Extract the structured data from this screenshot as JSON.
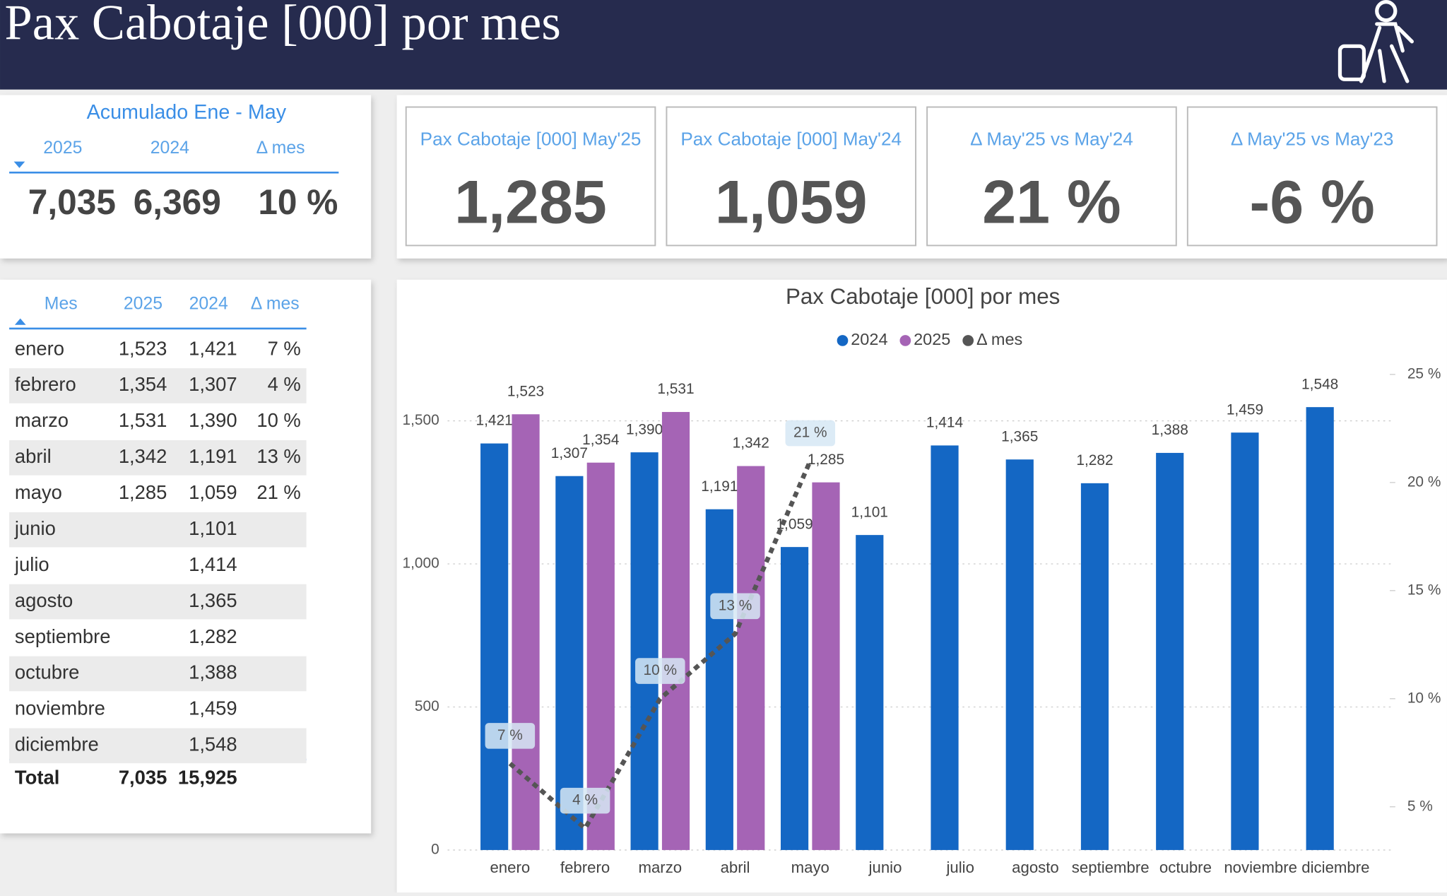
{
  "header": {
    "title": "Pax Cabotaje [000] por mes"
  },
  "summary": {
    "title": "Acumulado Ene - May",
    "columns": [
      "2025",
      "2024",
      "Δ mes"
    ],
    "values": [
      "7,035",
      "6,369",
      "10 %"
    ]
  },
  "kpis": [
    {
      "label": "Pax Cabotaje [000] May'25",
      "value": "1,285"
    },
    {
      "label": "Pax Cabotaje [000] May'24",
      "value": "1,059"
    },
    {
      "label": "Δ May'25 vs May'24",
      "value": "21 %"
    },
    {
      "label": "Δ May'25 vs May'23",
      "value": "-6 %"
    }
  ],
  "table": {
    "columns": [
      "Mes",
      "2025",
      "2024",
      "Δ mes"
    ],
    "rows": [
      {
        "mes": "enero",
        "y2025": "1,523",
        "y2024": "1,421",
        "delta": "7 %"
      },
      {
        "mes": "febrero",
        "y2025": "1,354",
        "y2024": "1,307",
        "delta": "4 %"
      },
      {
        "mes": "marzo",
        "y2025": "1,531",
        "y2024": "1,390",
        "delta": "10 %"
      },
      {
        "mes": "abril",
        "y2025": "1,342",
        "y2024": "1,191",
        "delta": "13 %"
      },
      {
        "mes": "mayo",
        "y2025": "1,285",
        "y2024": "1,059",
        "delta": "21 %"
      },
      {
        "mes": "junio",
        "y2024": "1,101"
      },
      {
        "mes": "julio",
        "y2024": "1,414"
      },
      {
        "mes": "agosto",
        "y2024": "1,365"
      },
      {
        "mes": "septiembre",
        "y2024": "1,282"
      },
      {
        "mes": "octubre",
        "y2024": "1,388"
      },
      {
        "mes": "noviembre",
        "y2024": "1,459"
      },
      {
        "mes": "diciembre",
        "y2024": "1,548"
      }
    ],
    "total": {
      "mes": "Total",
      "y2025": "7,035",
      "y2024": "15,925"
    }
  },
  "chart_data": {
    "type": "bar",
    "title": "Pax Cabotaje [000] por mes",
    "categories": [
      "enero",
      "febrero",
      "marzo",
      "abril",
      "mayo",
      "junio",
      "julio",
      "agosto",
      "septiembre",
      "octubre",
      "noviembre",
      "diciembre"
    ],
    "series": [
      {
        "name": "2024",
        "color": "#1467c4",
        "type": "bar",
        "values": [
          1421,
          1307,
          1390,
          1191,
          1059,
          1101,
          1414,
          1365,
          1282,
          1388,
          1459,
          1548
        ],
        "value_labels": [
          "1,421",
          "1,307",
          "1,390",
          "1,191",
          "1,059",
          "1,101",
          "1,414",
          "1,365",
          "1,282",
          "1,388",
          "1,459",
          "1,548"
        ]
      },
      {
        "name": "2025",
        "color": "#a564b5",
        "type": "bar",
        "values": [
          1523,
          1354,
          1531,
          1342,
          1285,
          null,
          null,
          null,
          null,
          null,
          null,
          null
        ],
        "value_labels": [
          "1,523",
          "1,354",
          "1,531",
          "1,342",
          "1,285",
          null,
          null,
          null,
          null,
          null,
          null,
          null
        ]
      },
      {
        "name": "Δ mes",
        "color": "#555555",
        "type": "line",
        "axis": "y2",
        "values": [
          7,
          4,
          10,
          13,
          21,
          null,
          null,
          null,
          null,
          null,
          null,
          null
        ],
        "value_labels": [
          "7 %",
          "4 %",
          "10 %",
          "13 %",
          "21 %",
          null,
          null,
          null,
          null,
          null,
          null,
          null
        ]
      }
    ],
    "ylim": [
      0,
      1700
    ],
    "yticks": [
      0,
      500,
      {
        "value": 1000,
        "label": "1,000"
      },
      {
        "value": 1500,
        "label": "1,500"
      }
    ],
    "y2lim": [
      3,
      25.5
    ],
    "y2ticks": [
      {
        "value": 5,
        "label": "5 %"
      },
      {
        "value": 10,
        "label": "10 %"
      },
      {
        "value": 15,
        "label": "15 %"
      },
      {
        "value": 20,
        "label": "20 %"
      },
      {
        "value": 25,
        "label": "25 %"
      }
    ],
    "grid": true,
    "legend": "top"
  }
}
